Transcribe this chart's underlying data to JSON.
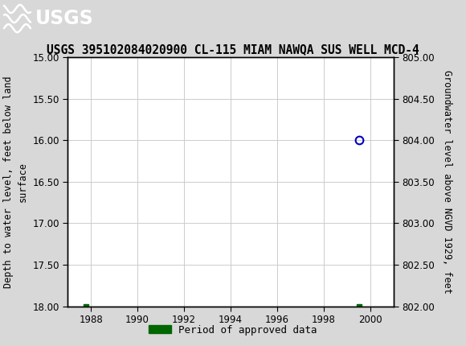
{
  "title": "USGS 395102084020900 CL-115 MIAM NAWQA SUS WELL MCD-4",
  "ylabel_left": "Depth to water level, feet below land\nsurface",
  "ylabel_right": "Groundwater level above NGVD 1929, feet",
  "ylim_left_top": 15.0,
  "ylim_left_bottom": 18.0,
  "ylim_right_top": 805.0,
  "ylim_right_bottom": 802.0,
  "xlim": [
    1987.0,
    2001.0
  ],
  "xticks": [
    1988,
    1990,
    1992,
    1994,
    1996,
    1998,
    2000
  ],
  "yticks_left": [
    15.0,
    15.5,
    16.0,
    16.5,
    17.0,
    17.5,
    18.0
  ],
  "yticks_right": [
    805.0,
    804.5,
    804.0,
    803.5,
    803.0,
    802.5,
    802.0
  ],
  "open_circle_points_x": [
    1987.8,
    1999.5
  ],
  "open_circle_points_y": [
    18.05,
    16.0
  ],
  "green_square_points_x": [
    1987.8,
    1999.5
  ],
  "green_square_points_y": [
    18.0,
    18.0
  ],
  "open_circle_color": "#0000bb",
  "green_square_color": "#006600",
  "grid_color": "#cccccc",
  "plot_bg": "#ffffff",
  "header_color": "#1a6b3c",
  "outer_bg": "#d8d8d8",
  "title_fontsize": 10.5,
  "axis_label_fontsize": 8.5,
  "tick_fontsize": 8.5,
  "legend_label": "Period of approved data",
  "legend_fontsize": 9
}
